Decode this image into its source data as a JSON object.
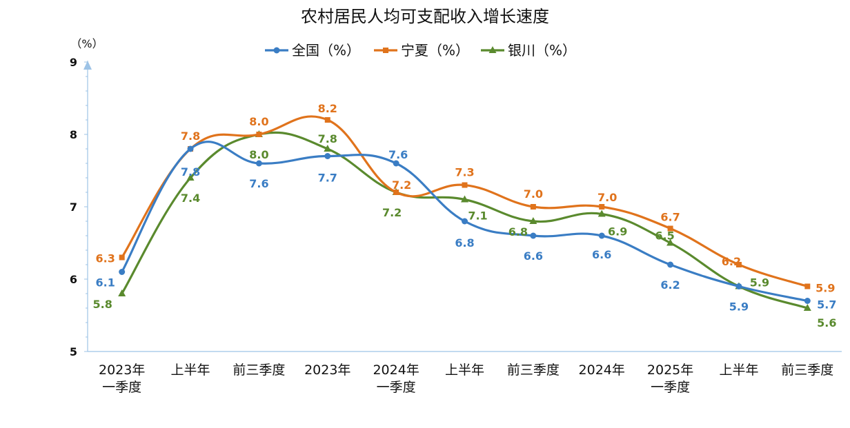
{
  "chart_data": {
    "type": "line",
    "title": "农村居民人均可支配收入增长速度",
    "ylabel_unit": "（%）",
    "ylim": [
      5,
      9
    ],
    "yticks": [
      "5",
      "6",
      "7",
      "8",
      "9"
    ],
    "categories": [
      [
        "2023年",
        "一季度"
      ],
      [
        "上半年"
      ],
      [
        "前三季度"
      ],
      [
        "2023年"
      ],
      [
        "2024年",
        "一季度"
      ],
      [
        "上半年"
      ],
      [
        "前三季度"
      ],
      [
        "2024年"
      ],
      [
        "2025年",
        "一季度"
      ],
      [
        "上半年"
      ],
      [
        "前三季度"
      ]
    ],
    "series": [
      {
        "name": "全国（%）",
        "color": "#3a7dc4",
        "marker": "circle",
        "values": [
          6.1,
          7.8,
          7.6,
          7.7,
          7.6,
          6.8,
          6.6,
          6.6,
          6.2,
          5.9,
          5.7
        ],
        "labels": [
          "6.1",
          "7.8",
          "7.6",
          "7.7",
          "7.6",
          "6.8",
          "6.6",
          "6.6",
          "6.2",
          "5.9",
          "5.7"
        ]
      },
      {
        "name": "宁夏（%）",
        "color": "#e0731c",
        "marker": "square",
        "values": [
          6.3,
          7.8,
          8.0,
          8.2,
          7.2,
          7.3,
          7.0,
          7.0,
          6.7,
          6.2,
          5.9
        ],
        "labels": [
          "6.3",
          "7.8",
          "8.0",
          "8.2",
          "7.2",
          "7.3",
          "7.0",
          "7.0",
          "6.7",
          "6.2",
          "5.9"
        ]
      },
      {
        "name": "银川（%）",
        "color": "#5a8a2e",
        "marker": "triangle",
        "values": [
          5.8,
          7.4,
          8.0,
          7.8,
          7.2,
          7.1,
          6.8,
          6.9,
          6.5,
          5.9,
          5.6
        ],
        "labels": [
          "5.8",
          "7.4",
          "8.0",
          "7.8",
          "7.2",
          "7.1",
          "6.8",
          "6.9",
          "6.5",
          "5.9",
          "5.6"
        ]
      }
    ],
    "grid": false,
    "legend_position": "top-center"
  }
}
